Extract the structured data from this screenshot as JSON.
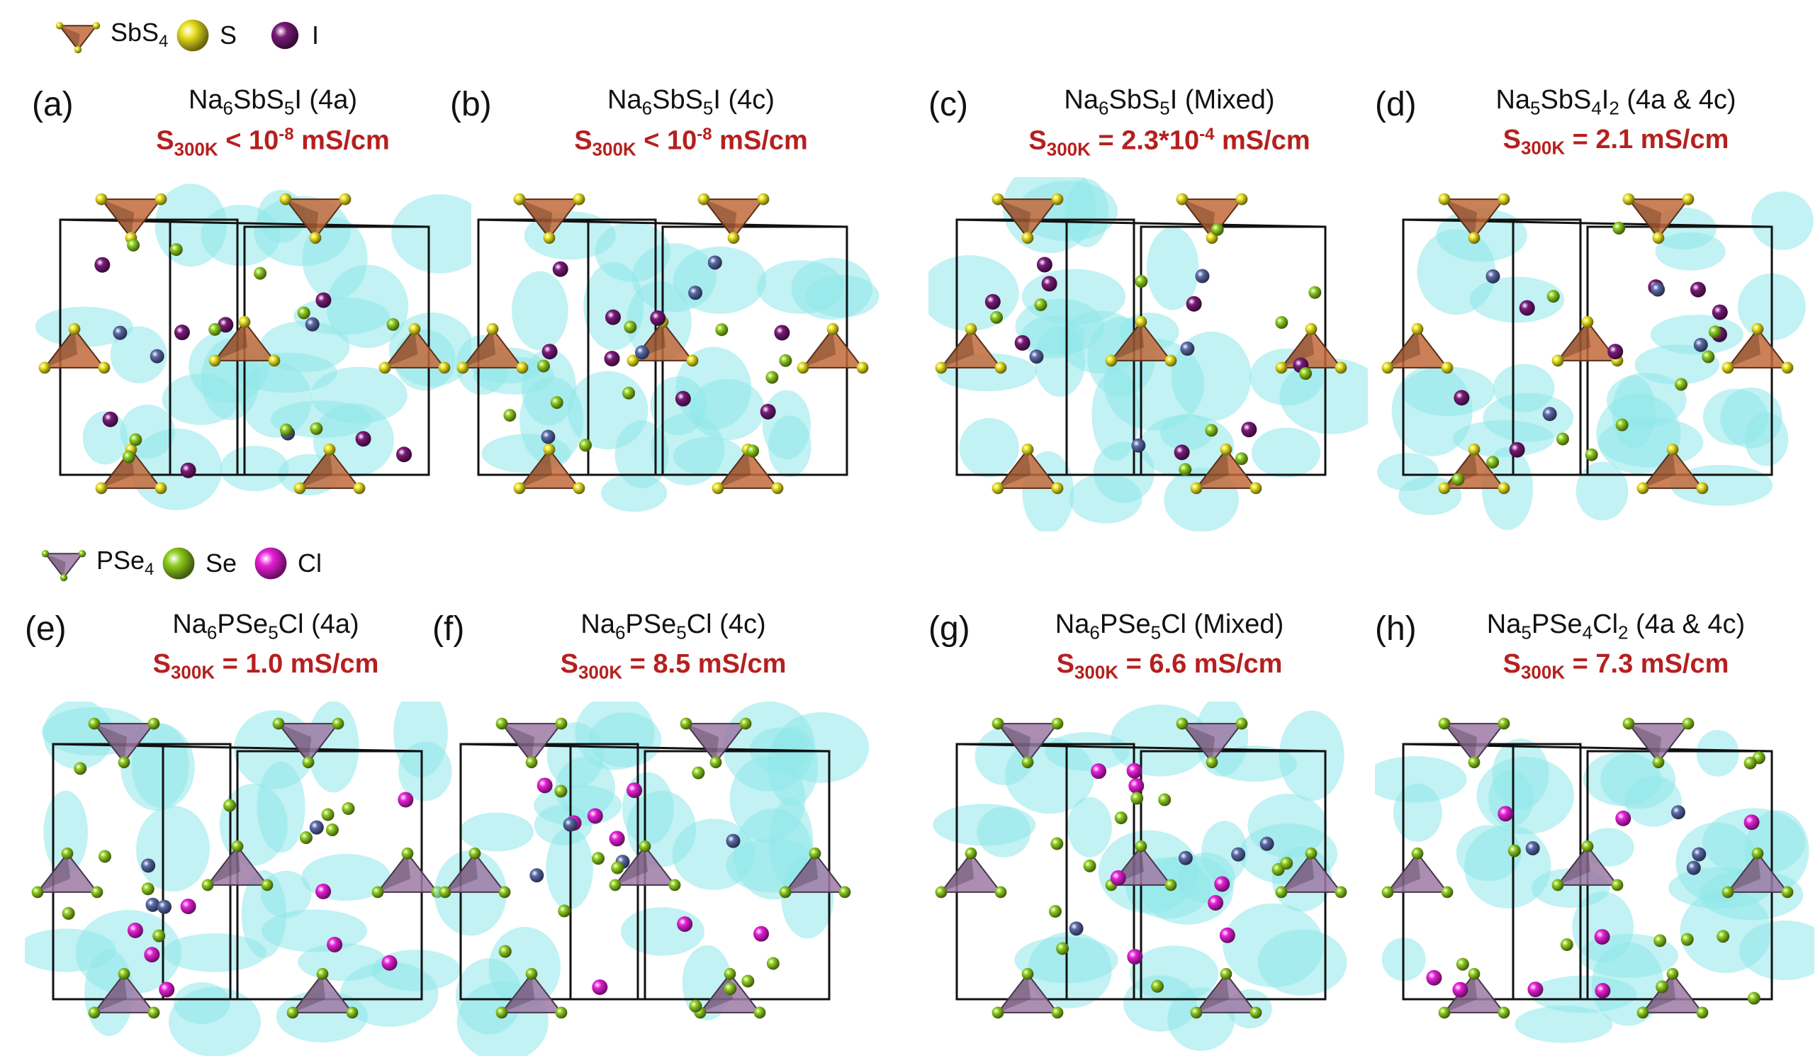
{
  "legend_top": {
    "items": [
      {
        "name": "SbS",
        "sub": "4",
        "type": "tetra-orange"
      },
      {
        "name": "S",
        "sub": "",
        "type": "ball-yellow"
      },
      {
        "name": "I",
        "sub": "",
        "type": "ball-purple"
      }
    ]
  },
  "legend_bottom": {
    "items": [
      {
        "name": "PSe",
        "sub": "4",
        "type": "tetra-violet"
      },
      {
        "name": "Se",
        "sub": "",
        "type": "ball-green"
      },
      {
        "name": "Cl",
        "sub": "",
        "type": "ball-magenta"
      }
    ]
  },
  "colors": {
    "tetra_orange": "#c26a3a",
    "tetra_violet": "#9e7aa6",
    "ball_yellow": "#e8e01f",
    "ball_purple": "#7a1a7a",
    "ball_green": "#8fce1e",
    "ball_magenta": "#e81fd8",
    "ball_blue": "#5a6aa8",
    "cloud_cyan": "#8fe8ea",
    "condition_red": "#b5201f"
  },
  "panels": [
    {
      "letter": "(a)",
      "formula": [
        [
          "Na",
          ""
        ],
        [
          "6",
          "sub"
        ],
        [
          "SbS",
          ""
        ],
        [
          "5",
          "sub"
        ],
        [
          "I (4a)",
          ""
        ]
      ],
      "condition": [
        [
          "S",
          ""
        ],
        [
          "300K",
          "sub"
        ],
        [
          " < 10",
          ""
        ],
        [
          "-8",
          "sup"
        ],
        [
          " mS/cm",
          ""
        ]
      ],
      "set": "sb"
    },
    {
      "letter": "(b)",
      "formula": [
        [
          "Na",
          ""
        ],
        [
          "6",
          "sub"
        ],
        [
          "SbS",
          ""
        ],
        [
          "5",
          "sub"
        ],
        [
          "I (4c)",
          ""
        ]
      ],
      "condition": [
        [
          "S",
          ""
        ],
        [
          "300K",
          "sub"
        ],
        [
          " < 10",
          ""
        ],
        [
          "-8",
          "sup"
        ],
        [
          " mS/cm",
          ""
        ]
      ],
      "set": "sb"
    },
    {
      "letter": "(c)",
      "formula": [
        [
          "Na",
          ""
        ],
        [
          "6",
          "sub"
        ],
        [
          "SbS",
          ""
        ],
        [
          "5",
          "sub"
        ],
        [
          "I (Mixed)",
          ""
        ]
      ],
      "condition": [
        [
          "S",
          ""
        ],
        [
          "300K",
          "sub"
        ],
        [
          " = 2.3*10",
          ""
        ],
        [
          "-4",
          "sup"
        ],
        [
          " mS/cm",
          ""
        ]
      ],
      "set": "sb"
    },
    {
      "letter": "(d)",
      "formula": [
        [
          "Na",
          ""
        ],
        [
          "5",
          "sub"
        ],
        [
          "SbS",
          ""
        ],
        [
          "4",
          "sub"
        ],
        [
          "I",
          ""
        ],
        [
          "2",
          "sub"
        ],
        [
          " (4a & 4c)",
          ""
        ]
      ],
      "condition": [
        [
          "S",
          ""
        ],
        [
          "300K",
          "sub"
        ],
        [
          " = 2.1 mS/cm",
          ""
        ]
      ],
      "set": "sb"
    },
    {
      "letter": "(e)",
      "formula": [
        [
          "Na",
          ""
        ],
        [
          "6",
          "sub"
        ],
        [
          "PSe",
          ""
        ],
        [
          "5",
          "sub"
        ],
        [
          "Cl (4a)",
          ""
        ]
      ],
      "condition": [
        [
          "S",
          ""
        ],
        [
          "300K",
          "sub"
        ],
        [
          " = 1.0 mS/cm",
          ""
        ]
      ],
      "set": "pse"
    },
    {
      "letter": "(f)",
      "formula": [
        [
          "Na",
          ""
        ],
        [
          "6",
          "sub"
        ],
        [
          "PSe",
          ""
        ],
        [
          "5",
          "sub"
        ],
        [
          "Cl (4c)",
          ""
        ]
      ],
      "condition": [
        [
          "S",
          ""
        ],
        [
          "300K",
          "sub"
        ],
        [
          " = 8.5 mS/cm",
          ""
        ]
      ],
      "set": "pse"
    },
    {
      "letter": "(g)",
      "formula": [
        [
          "Na",
          ""
        ],
        [
          "6",
          "sub"
        ],
        [
          "PSe",
          ""
        ],
        [
          "5",
          "sub"
        ],
        [
          "Cl (Mixed)",
          ""
        ]
      ],
      "condition": [
        [
          "S",
          ""
        ],
        [
          "300K",
          "sub"
        ],
        [
          " = 6.6 mS/cm",
          ""
        ]
      ],
      "set": "pse"
    },
    {
      "letter": "(h)",
      "formula": [
        [
          "Na",
          ""
        ],
        [
          "5",
          "sub"
        ],
        [
          "PSe",
          ""
        ],
        [
          "4",
          "sub"
        ],
        [
          "Cl",
          ""
        ],
        [
          "2",
          "sub"
        ],
        [
          " (4a & 4c)",
          ""
        ]
      ],
      "condition": [
        [
          "S",
          ""
        ],
        [
          "300K",
          "sub"
        ],
        [
          " = 7.3 mS/cm",
          ""
        ]
      ],
      "set": "pse"
    }
  ]
}
